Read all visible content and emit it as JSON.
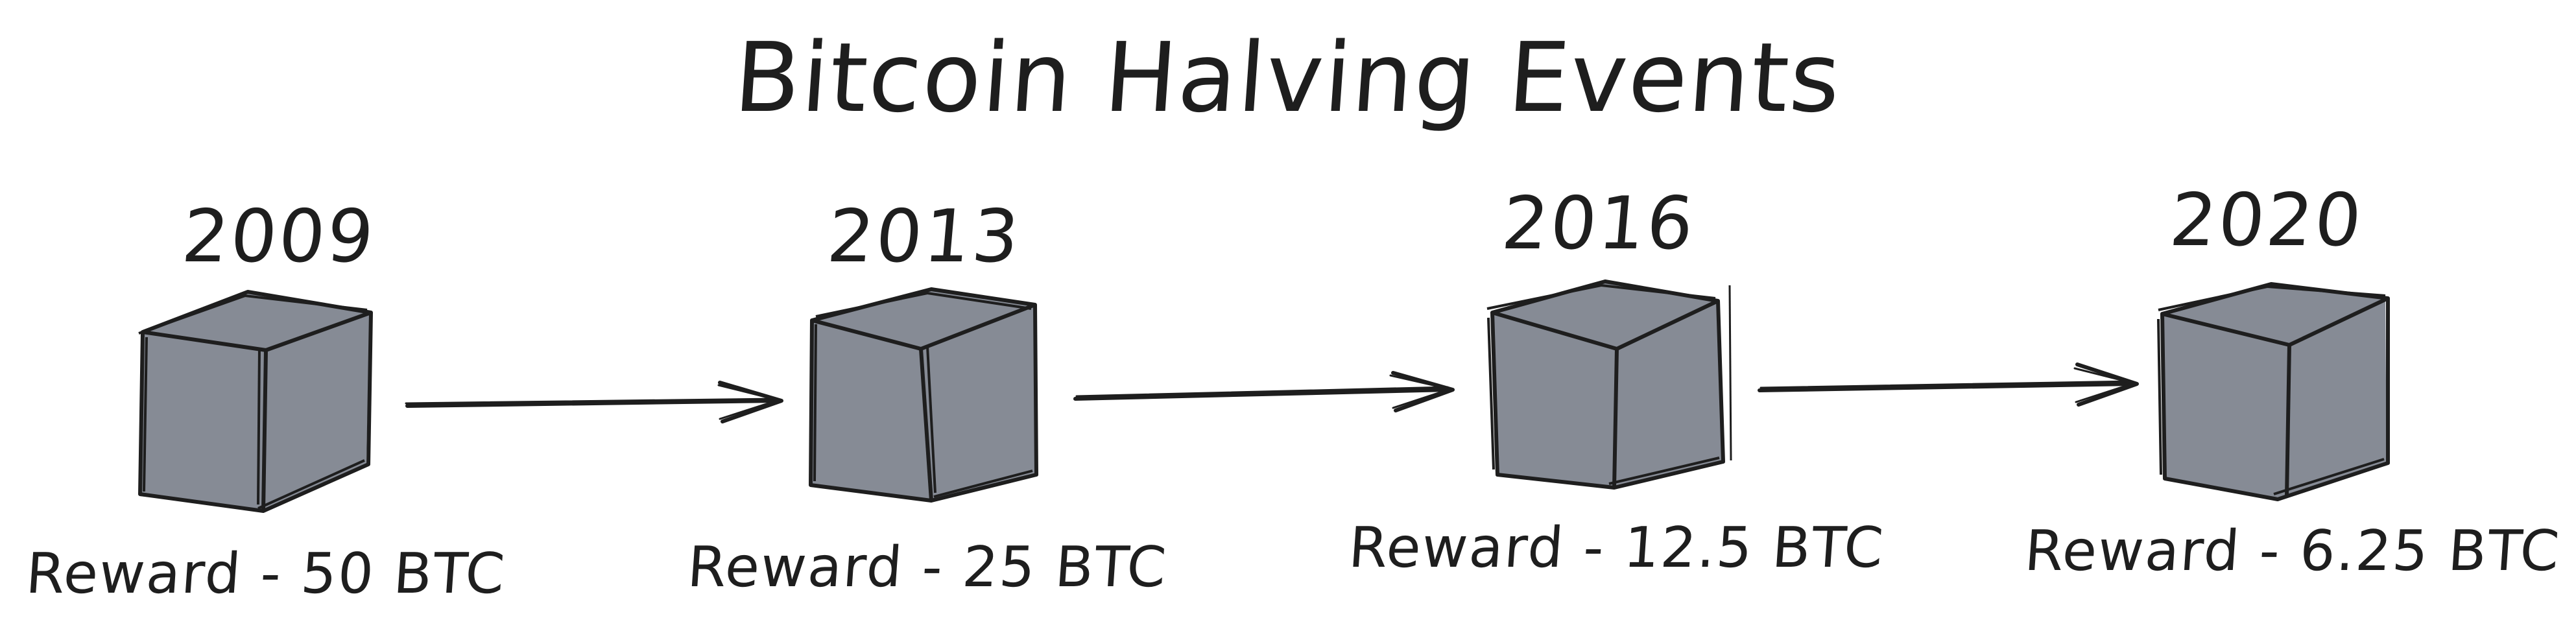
{
  "title": "Bitcoin Halving Events",
  "colors": {
    "block_fill": "#868b95",
    "stroke": "#1e1e1e",
    "background": "#ffffff"
  },
  "events": [
    {
      "year": "2009",
      "reward": "Reward - 50 BTC"
    },
    {
      "year": "2013",
      "reward": "Reward - 25 BTC"
    },
    {
      "year": "2016",
      "reward": "Reward - 12.5 BTC"
    },
    {
      "year": "2020",
      "reward": "Reward - 6.25 BTC"
    }
  ]
}
